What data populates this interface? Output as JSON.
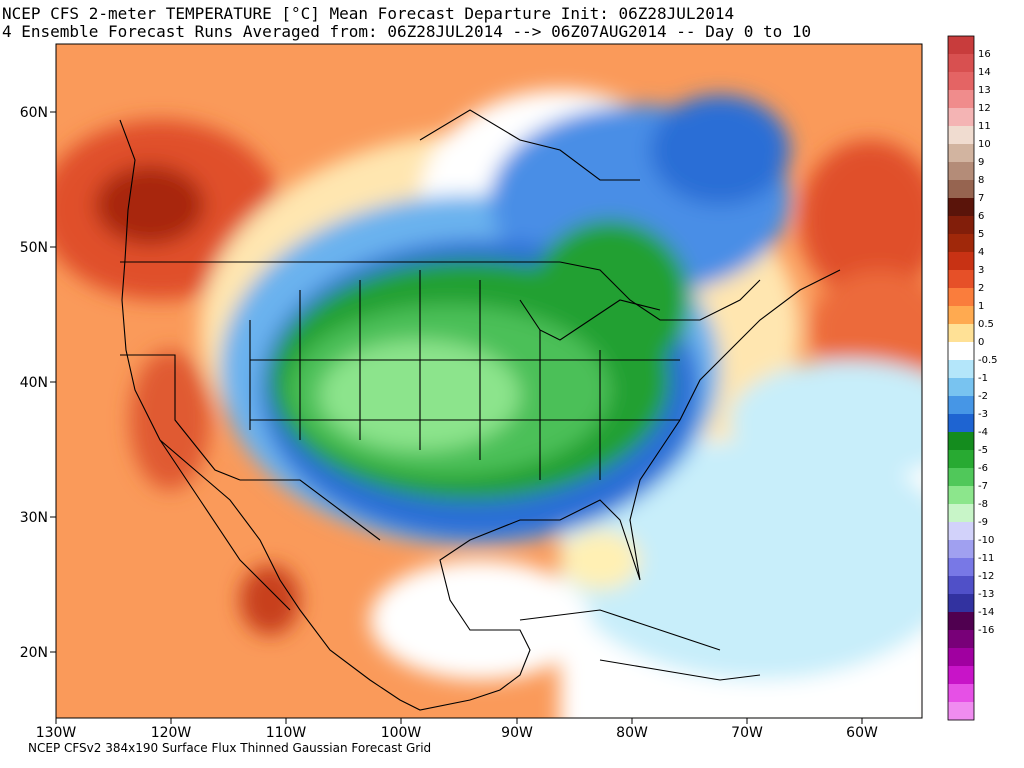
{
  "header": {
    "title_line1": "NCEP CFS 2-meter TEMPERATURE [°C] Mean Forecast Departure Init: 06Z28JUL2014",
    "title_line2": "4 Ensemble Forecast Runs Averaged from: 06Z28JUL2014 --> 06Z07AUG2014 -- Day 0 to 10"
  },
  "footer": {
    "text": "NCEP CFSv2 384x190 Surface Flux Thinned Gaussian Forecast Grid"
  },
  "map": {
    "lat_labels": [
      "60N",
      "50N",
      "40N",
      "30N",
      "20N"
    ],
    "lon_labels": [
      "130W",
      "120W",
      "110W",
      "100W",
      "90W",
      "80W",
      "70W",
      "60W"
    ]
  },
  "colorbar": {
    "levels": [
      {
        "label": "16",
        "color": "#c83c3c"
      },
      {
        "label": "14",
        "color": "#d85050"
      },
      {
        "label": "13",
        "color": "#e46464"
      },
      {
        "label": "12",
        "color": "#f08c8c"
      },
      {
        "label": "11",
        "color": "#f4b4b4"
      },
      {
        "label": "10",
        "color": "#f0dcd0"
      },
      {
        "label": "9",
        "color": "#d2b4a0"
      },
      {
        "label": "8",
        "color": "#b48c78"
      },
      {
        "label": "7",
        "color": "#966450"
      },
      {
        "label": "6",
        "color": "#5a140a"
      },
      {
        "label": "5",
        "color": "#821e0a"
      },
      {
        "label": "4",
        "color": "#a0280a"
      },
      {
        "label": "3",
        "color": "#c83214"
      },
      {
        "label": "2",
        "color": "#e65028"
      },
      {
        "label": "1",
        "color": "#fa7d3c"
      },
      {
        "label": "0.5",
        "color": "#ffaa50"
      },
      {
        "label": "0",
        "color": "#ffe196"
      },
      {
        "label": "-0.5",
        "color": "#ffffff"
      },
      {
        "label": "-1",
        "color": "#b4e6fa"
      },
      {
        "label": "-2",
        "color": "#78c3f0"
      },
      {
        "label": "-3",
        "color": "#4696e6"
      },
      {
        "label": "-4",
        "color": "#1e64d2"
      },
      {
        "label": "-5",
        "color": "#148c1e"
      },
      {
        "label": "-6",
        "color": "#28aa32"
      },
      {
        "label": "-7",
        "color": "#50c85a"
      },
      {
        "label": "-8",
        "color": "#8ce68c"
      },
      {
        "label": "-9",
        "color": "#c8f5c8"
      },
      {
        "label": "-10",
        "color": "#d2d2fa"
      },
      {
        "label": "-11",
        "color": "#a0a0f0"
      },
      {
        "label": "-12",
        "color": "#7878e6"
      },
      {
        "label": "-13",
        "color": "#5050c8"
      },
      {
        "label": "-14",
        "color": "#3232a0"
      },
      {
        "label": "-16",
        "color": "#500050"
      },
      {
        "label": "",
        "color": "#780078"
      },
      {
        "label": "",
        "color": "#a000a0"
      },
      {
        "label": "",
        "color": "#c814c8"
      },
      {
        "label": "",
        "color": "#e650e6"
      },
      {
        "label": "",
        "color": "#f08cf0"
      }
    ]
  }
}
